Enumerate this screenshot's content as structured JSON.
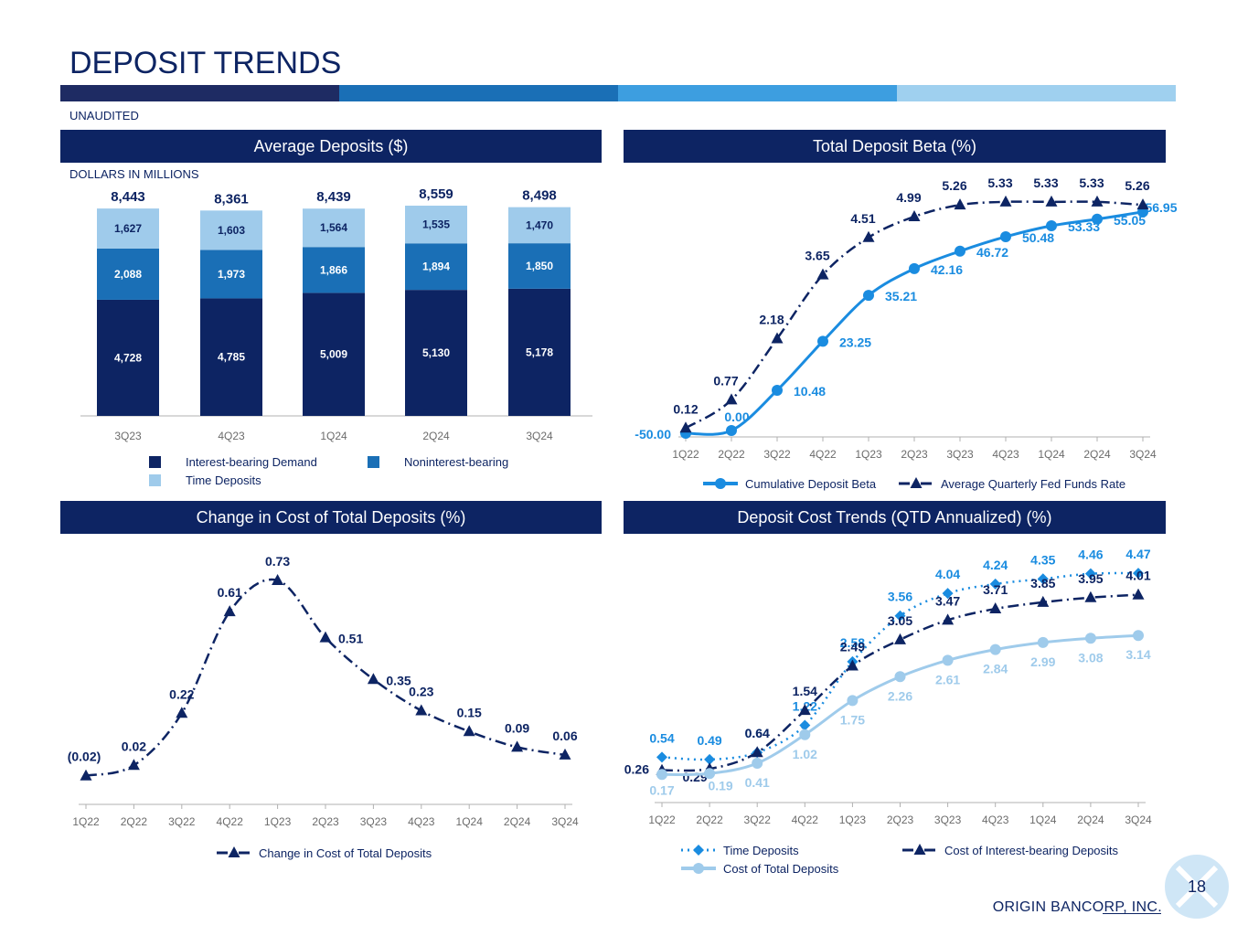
{
  "page": {
    "title": "DEPOSIT TRENDS",
    "unaudited": "UNAUDITED",
    "footer": "ORIGIN BANCORP, INC.",
    "page_number": "18",
    "strip_colors": [
      "#1e2b63",
      "#1a6fb6",
      "#3d9ee0",
      "#9fd0ef"
    ]
  },
  "panels": {
    "avg_deposits": {
      "title": "Average Deposits ($)",
      "subtitle": "DOLLARS IN MILLIONS"
    },
    "beta": {
      "title": "Total Deposit Beta (%)"
    },
    "cost_change": {
      "title": "Change in Cost of Total Deposits (%)"
    },
    "cost_trends": {
      "title": "Deposit Cost Trends (QTD Annualized) (%)"
    }
  },
  "chart_data": [
    {
      "id": "avg_deposits",
      "type": "bar",
      "stacked": true,
      "categories": [
        "3Q23",
        "4Q23",
        "1Q24",
        "2Q24",
        "3Q24"
      ],
      "series": [
        {
          "name": "Interest-bearing Demand",
          "color": "#0d2463",
          "values": [
            4728,
            4785,
            5009,
            5130,
            5178
          ],
          "labels": [
            "4,728",
            "4,785",
            "5,009",
            "5,130",
            "5,178"
          ]
        },
        {
          "name": "Noninterest-bearing",
          "color": "#1a6fb6",
          "values": [
            2088,
            1973,
            1866,
            1894,
            1850
          ],
          "labels": [
            "2,088",
            "1,973",
            "1,866",
            "1,894",
            "1,850"
          ]
        },
        {
          "name": "Time Deposits",
          "color": "#9fcbeb",
          "values": [
            1627,
            1603,
            1564,
            1535,
            1470
          ],
          "labels": [
            "1,627",
            "1,603",
            "1,564",
            "1,535",
            "1,470"
          ]
        }
      ],
      "totals": [
        "8,443",
        "8,361",
        "8,439",
        "8,559",
        "8,498"
      ],
      "legend_placement": "bottom"
    },
    {
      "id": "beta",
      "type": "line",
      "categories": [
        "1Q22",
        "2Q22",
        "3Q22",
        "4Q22",
        "1Q23",
        "2Q23",
        "3Q23",
        "4Q23",
        "1Q24",
        "2Q24",
        "3Q24"
      ],
      "series": [
        {
          "name": "Cumulative Deposit Beta",
          "color": "#1a8ce0",
          "style": "solid",
          "marker": "circle",
          "values": [
            -50.0,
            0.0,
            10.48,
            23.25,
            35.21,
            42.16,
            46.72,
            50.48,
            53.33,
            55.05,
            56.95
          ],
          "labels": [
            "-50.00",
            "0.00",
            "10.48",
            "23.25",
            "35.21",
            "42.16",
            "46.72",
            "50.48",
            "53.33",
            "55.05",
            "56.95"
          ]
        },
        {
          "name": "Average Quarterly Fed Funds Rate",
          "color": "#0d2463",
          "style": "dashdot",
          "marker": "triangle",
          "values": [
            0.12,
            0.77,
            2.18,
            3.65,
            4.51,
            4.99,
            5.26,
            5.33,
            5.33,
            5.33,
            5.26
          ],
          "labels": [
            "0.12",
            "0.77",
            "2.18",
            "3.65",
            "4.51",
            "4.99",
            "5.26",
            "5.33",
            "5.33",
            "5.33",
            "5.26"
          ]
        }
      ],
      "legend_placement": "bottom"
    },
    {
      "id": "cost_change",
      "type": "line",
      "categories": [
        "1Q22",
        "2Q22",
        "3Q22",
        "4Q22",
        "1Q23",
        "2Q23",
        "3Q23",
        "4Q23",
        "1Q24",
        "2Q24",
        "3Q24"
      ],
      "series": [
        {
          "name": "Change in Cost of Total Deposits",
          "color": "#0d2463",
          "style": "dashdot",
          "marker": "triangle",
          "values": [
            -0.02,
            0.02,
            0.22,
            0.61,
            0.73,
            0.51,
            0.35,
            0.23,
            0.15,
            0.09,
            0.06
          ],
          "labels": [
            "(0.02)",
            "0.02",
            "0.22",
            "0.61",
            "0.73",
            "0.51",
            "0.35",
            "0.23",
            "0.15",
            "0.09",
            "0.06"
          ]
        }
      ],
      "legend_placement": "bottom"
    },
    {
      "id": "cost_trends",
      "type": "line",
      "categories": [
        "1Q22",
        "2Q22",
        "3Q22",
        "4Q22",
        "1Q23",
        "2Q23",
        "3Q23",
        "4Q23",
        "1Q24",
        "2Q24",
        "3Q24"
      ],
      "series": [
        {
          "name": "Time Deposits",
          "color": "#1a8ce0",
          "style": "dotted",
          "marker": "diamond",
          "values": [
            0.54,
            0.49,
            0.64,
            1.22,
            2.58,
            3.56,
            4.04,
            4.24,
            4.35,
            4.46,
            4.47
          ],
          "labels": [
            "0.54",
            "0.49",
            "0.64",
            "1.22",
            "2.58",
            "3.56",
            "4.04",
            "4.24",
            "4.35",
            "4.46",
            "4.47"
          ]
        },
        {
          "name": "Cost of Interest-bearing Deposits",
          "color": "#0d2463",
          "style": "dashdot",
          "marker": "triangle",
          "values": [
            0.26,
            0.29,
            0.64,
            1.54,
            2.49,
            3.05,
            3.47,
            3.71,
            3.85,
            3.95,
            4.01
          ],
          "labels": [
            "0.26",
            "0.29",
            "0.64",
            "1.54",
            "2.49",
            "3.05",
            "3.47",
            "3.71",
            "3.85",
            "3.95",
            "4.01"
          ]
        },
        {
          "name": "Cost of Total Deposits",
          "color": "#9fcbeb",
          "style": "solid",
          "marker": "circle",
          "values": [
            0.17,
            0.19,
            0.41,
            1.02,
            1.75,
            2.26,
            2.61,
            2.84,
            2.99,
            3.08,
            3.14
          ],
          "labels": [
            "0.17",
            "0.19",
            "0.41",
            "1.02",
            "1.75",
            "2.26",
            "2.61",
            "2.84",
            "2.99",
            "3.08",
            "3.14"
          ]
        }
      ],
      "legend_placement": "bottom"
    }
  ]
}
